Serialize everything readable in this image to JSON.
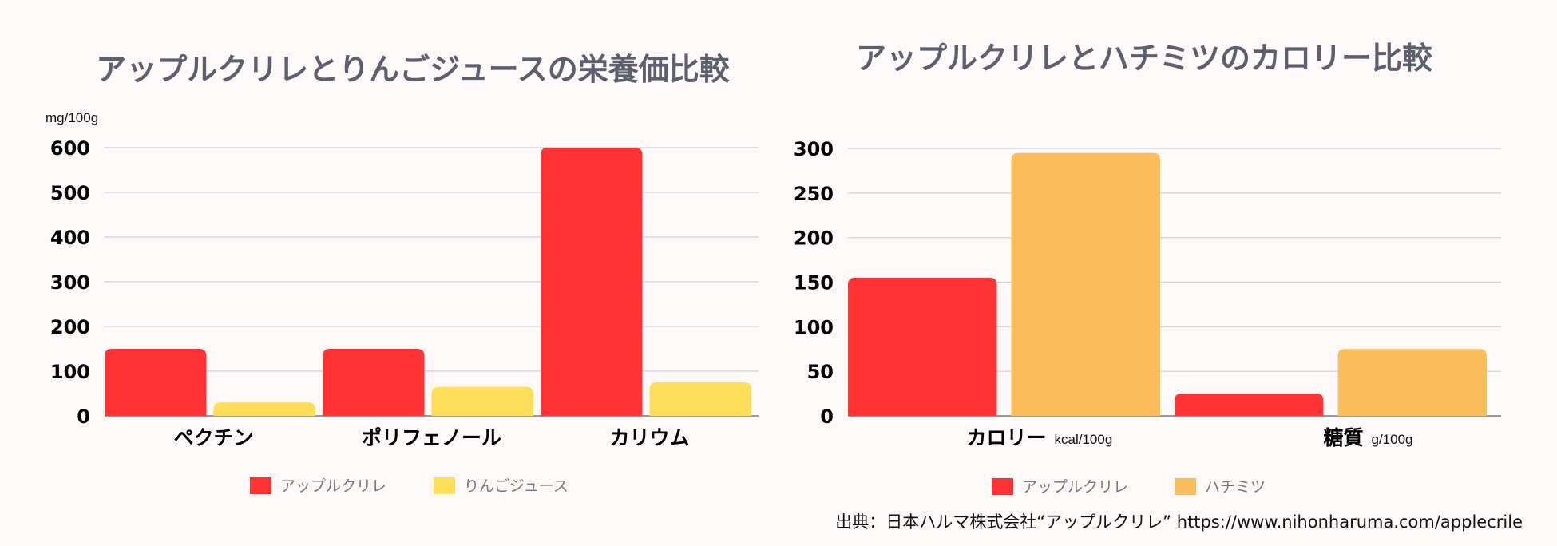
{
  "chart_data": [
    {
      "type": "bar",
      "title": "アップルクリレとりんごジュースの栄養価比較",
      "ylabel": "mg/100g",
      "ylim": [
        0,
        600
      ],
      "yticks": [
        0,
        100,
        200,
        300,
        400,
        500,
        600
      ],
      "categories": [
        "ペクチン",
        "ポリフェノール",
        "カリウム"
      ],
      "category_units": [
        "",
        "",
        ""
      ],
      "series": [
        {
          "name": "アップルクリレ",
          "color": "#ff3333",
          "values": [
            150,
            150,
            600
          ]
        },
        {
          "name": "りんごジュース",
          "color": "#ffde59",
          "values": [
            30,
            65,
            75
          ]
        }
      ],
      "legend": "bottom"
    },
    {
      "type": "bar",
      "title": "アップルクリレとハチミツのカロリー比較",
      "ylabel": "",
      "ylim": [
        0,
        300
      ],
      "yticks": [
        0,
        50,
        100,
        150,
        200,
        250,
        300
      ],
      "categories": [
        "カロリー",
        "糖質"
      ],
      "category_units": [
        "kcal/100g",
        "g/100g"
      ],
      "series": [
        {
          "name": "アップルクリレ",
          "color": "#ff3333",
          "values": [
            155,
            25
          ]
        },
        {
          "name": "ハチミツ",
          "color": "#fcbd5b",
          "values": [
            295,
            75
          ]
        }
      ],
      "legend": "bottom"
    }
  ],
  "source_note": "出典：日本ハルマ株式会社“アップルクリレ” https://www.nihonharuma.com/applecrile",
  "colors": {
    "background": "#fcf9f8",
    "title": "#5e5f6e",
    "gridline": "#d0d0d0"
  }
}
